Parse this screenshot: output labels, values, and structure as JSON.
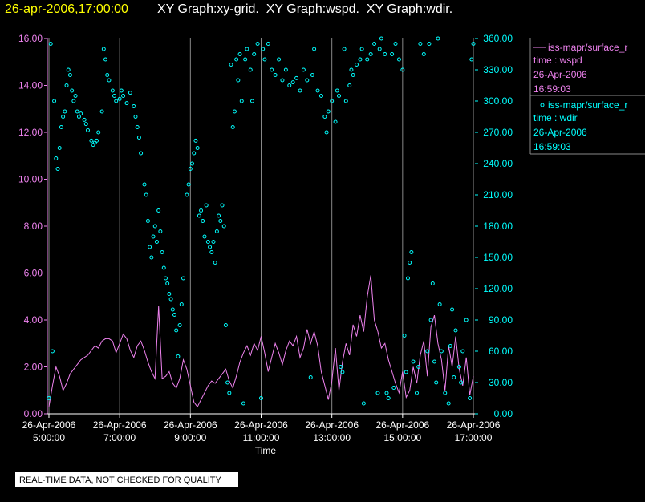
{
  "chart_data": {
    "type": "line",
    "title": "26-apr-2006,17:00:00",
    "subtitle": "XY Graph:xy-grid.  XY Graph:wspd.  XY Graph:wdir.",
    "xlabel": "Time",
    "note": "REAL-TIME DATA, NOT CHECKED FOR QUALITY",
    "xlim": [
      4.955,
      17.045
    ],
    "xticks": [
      {
        "value": 5,
        "label": [
          "26-Apr-2006",
          "5:00:00"
        ]
      },
      {
        "value": 7,
        "label": [
          "26-Apr-2006",
          "7:00:00"
        ]
      },
      {
        "value": 9,
        "label": [
          "26-Apr-2006",
          "9:00:00"
        ]
      },
      {
        "value": 11,
        "label": [
          "26-Apr-2006",
          "11:00:00"
        ]
      },
      {
        "value": 13,
        "label": [
          "26-Apr-2006",
          "13:00:00"
        ]
      },
      {
        "value": 15,
        "label": [
          "26-Apr-2006",
          "15:00:00"
        ]
      },
      {
        "value": 17,
        "label": [
          "26-Apr-2006",
          "17:00:00"
        ]
      }
    ],
    "ylim": [
      0,
      16
    ],
    "yticks": [
      {
        "value": 0,
        "label": "0.00"
      },
      {
        "value": 2,
        "label": "2.00"
      },
      {
        "value": 4,
        "label": "4.00"
      },
      {
        "value": 6,
        "label": "6.00"
      },
      {
        "value": 8,
        "label": "8.00"
      },
      {
        "value": 10,
        "label": "10.00"
      },
      {
        "value": 12,
        "label": "12.00"
      },
      {
        "value": 14,
        "label": "14.00"
      },
      {
        "value": 16,
        "label": "16.00"
      }
    ],
    "y2lim": [
      0,
      360
    ],
    "y2ticks": [
      {
        "value": 0,
        "label": "0.00"
      },
      {
        "value": 30,
        "label": "30.00"
      },
      {
        "value": 60,
        "label": "60.00"
      },
      {
        "value": 90,
        "label": "90.00"
      },
      {
        "value": 120,
        "label": "120.00"
      },
      {
        "value": 150,
        "label": "150.00"
      },
      {
        "value": 180,
        "label": "180.00"
      },
      {
        "value": 210,
        "label": "210.00"
      },
      {
        "value": 240,
        "label": "240.00"
      },
      {
        "value": 270,
        "label": "270.00"
      },
      {
        "value": 300,
        "label": "300.00"
      },
      {
        "value": 330,
        "label": "330.00"
      },
      {
        "value": 360,
        "label": "360.00"
      }
    ],
    "xgrid": true,
    "series": [
      {
        "name": "iss-mapr/surface_r",
        "color": "#ee82ee",
        "type": "line",
        "axis": "y",
        "legend": [
          "time : wspd",
          "26-Apr-2006",
          "16:59:03"
        ],
        "x": [
          5.0,
          5.1,
          5.2,
          5.3,
          5.4,
          5.5,
          5.6,
          5.7,
          5.8,
          5.9,
          6.0,
          6.1,
          6.2,
          6.3,
          6.4,
          6.5,
          6.6,
          6.7,
          6.8,
          6.9,
          7.0,
          7.1,
          7.2,
          7.3,
          7.4,
          7.5,
          7.6,
          7.7,
          7.8,
          7.9,
          8.0,
          8.1,
          8.2,
          8.3,
          8.4,
          8.5,
          8.6,
          8.7,
          8.8,
          8.9,
          9.0,
          9.1,
          9.2,
          9.3,
          9.4,
          9.5,
          9.6,
          9.7,
          9.8,
          9.9,
          10.0,
          10.1,
          10.2,
          10.3,
          10.4,
          10.5,
          10.6,
          10.7,
          10.8,
          10.9,
          11.0,
          11.1,
          11.2,
          11.3,
          11.4,
          11.5,
          11.6,
          11.7,
          11.8,
          11.9,
          12.0,
          12.1,
          12.2,
          12.3,
          12.4,
          12.5,
          12.6,
          12.7,
          12.8,
          12.9,
          13.0,
          13.1,
          13.2,
          13.3,
          13.4,
          13.5,
          13.6,
          13.7,
          13.8,
          13.9,
          14.0,
          14.1,
          14.2,
          14.3,
          14.4,
          14.5,
          14.6,
          14.7,
          14.8,
          14.9,
          15.0,
          15.1,
          15.2,
          15.3,
          15.4,
          15.5,
          15.6,
          15.7,
          15.8,
          15.9,
          16.0,
          16.1,
          16.2,
          16.3,
          16.4,
          16.5,
          16.6,
          16.7,
          16.8,
          16.9,
          17.0
        ],
        "values": [
          0.3,
          1.2,
          2.0,
          1.6,
          1.0,
          1.3,
          1.7,
          1.9,
          2.1,
          2.3,
          2.4,
          2.5,
          2.7,
          2.9,
          2.8,
          3.1,
          3.2,
          3.2,
          3.1,
          2.6,
          3.0,
          3.4,
          3.2,
          2.7,
          2.4,
          2.9,
          3.1,
          2.7,
          2.2,
          1.8,
          1.5,
          4.6,
          1.5,
          1.6,
          1.8,
          1.3,
          1.1,
          1.5,
          2.3,
          1.9,
          1.2,
          0.5,
          0.3,
          0.6,
          0.9,
          1.2,
          1.4,
          1.3,
          1.5,
          1.7,
          1.9,
          1.4,
          1.1,
          1.6,
          2.2,
          2.6,
          2.9,
          2.5,
          3.0,
          2.7,
          3.3,
          2.6,
          1.8,
          2.4,
          3.0,
          2.6,
          2.1,
          2.7,
          3.1,
          2.9,
          3.3,
          2.4,
          2.8,
          3.6,
          3.0,
          3.5,
          2.9,
          1.8,
          1.2,
          0.6,
          1.4,
          2.8,
          1.0,
          2.2,
          3.0,
          2.5,
          3.8,
          3.3,
          4.2,
          3.5,
          5.0,
          5.9,
          4.0,
          3.5,
          2.8,
          3.0,
          2.3,
          1.8,
          1.3,
          0.9,
          1.8,
          0.7,
          1.0,
          2.0,
          1.3,
          2.5,
          3.1,
          1.6,
          3.7,
          4.2,
          3.0,
          2.3,
          1.0,
          2.9,
          2.0,
          3.3,
          1.9,
          1.2,
          2.4,
          0.8,
          1.6
        ]
      },
      {
        "name": "iss-mapr/surface_r",
        "color": "#00ffff",
        "type": "scatter",
        "axis": "y2",
        "legend": [
          "time : wdir",
          "26-Apr-2006",
          "16:59:03"
        ],
        "x": [
          5.0,
          5.05,
          5.1,
          5.15,
          5.2,
          5.25,
          5.3,
          5.35,
          5.4,
          5.45,
          5.5,
          5.55,
          5.6,
          5.65,
          5.7,
          5.75,
          5.8,
          5.85,
          5.9,
          6.0,
          6.05,
          6.1,
          6.2,
          6.25,
          6.3,
          6.35,
          6.4,
          6.5,
          6.55,
          6.6,
          6.65,
          6.7,
          6.8,
          6.85,
          6.9,
          7.0,
          7.05,
          7.1,
          7.2,
          7.3,
          7.4,
          7.45,
          7.5,
          7.55,
          7.6,
          7.7,
          7.75,
          7.8,
          7.85,
          7.9,
          7.95,
          8.0,
          8.05,
          8.1,
          8.15,
          8.2,
          8.25,
          8.3,
          8.35,
          8.4,
          8.45,
          8.5,
          8.55,
          8.6,
          8.65,
          8.7,
          8.75,
          8.8,
          8.9,
          8.95,
          9.0,
          9.05,
          9.1,
          9.15,
          9.2,
          9.25,
          9.3,
          9.35,
          9.4,
          9.45,
          9.5,
          9.55,
          9.6,
          9.65,
          9.7,
          9.75,
          9.8,
          9.85,
          9.9,
          9.95,
          10.0,
          10.05,
          10.1,
          10.15,
          10.2,
          10.25,
          10.3,
          10.35,
          10.4,
          10.45,
          10.5,
          10.55,
          10.6,
          10.7,
          10.75,
          10.8,
          10.9,
          11.0,
          11.05,
          11.1,
          11.2,
          11.3,
          11.4,
          11.5,
          11.6,
          11.7,
          11.8,
          11.9,
          12.0,
          12.1,
          12.2,
          12.3,
          12.4,
          12.45,
          12.5,
          12.6,
          12.7,
          12.8,
          12.85,
          12.9,
          13.0,
          13.1,
          13.15,
          13.2,
          13.25,
          13.3,
          13.35,
          13.4,
          13.5,
          13.55,
          13.6,
          13.7,
          13.8,
          13.85,
          13.9,
          14.0,
          14.1,
          14.2,
          14.3,
          14.35,
          14.4,
          14.5,
          14.55,
          14.6,
          14.7,
          14.75,
          14.8,
          14.9,
          15.0,
          15.05,
          15.1,
          15.15,
          15.2,
          15.25,
          15.3,
          15.4,
          15.45,
          15.5,
          15.6,
          15.7,
          15.75,
          15.8,
          15.85,
          15.9,
          15.95,
          16.0,
          16.05,
          16.1,
          16.2,
          16.3,
          16.35,
          16.4,
          16.45,
          16.5,
          16.6,
          16.65,
          16.7,
          16.8,
          16.9,
          16.95,
          17.0
        ],
        "values": [
          15,
          355,
          60,
          300,
          245,
          235,
          255,
          275,
          285,
          290,
          315,
          330,
          325,
          310,
          300,
          305,
          290,
          285,
          288,
          282,
          278,
          272,
          262,
          258,
          260,
          262,
          270,
          290,
          350,
          340,
          325,
          320,
          310,
          305,
          300,
          302,
          310,
          305,
          298,
          308,
          295,
          285,
          275,
          265,
          250,
          220,
          210,
          185,
          160,
          150,
          170,
          180,
          165,
          195,
          175,
          155,
          140,
          130,
          125,
          115,
          110,
          100,
          95,
          80,
          55,
          85,
          105,
          130,
          210,
          220,
          235,
          240,
          250,
          262,
          255,
          190,
          195,
          185,
          170,
          200,
          165,
          160,
          155,
          165,
          145,
          175,
          190,
          185,
          200,
          180,
          85,
          30,
          20,
          335,
          275,
          290,
          340,
          320,
          345,
          300,
          10,
          340,
          350,
          330,
          300,
          345,
          355,
          15,
          350,
          340,
          355,
          330,
          325,
          340,
          320,
          330,
          315,
          318,
          322,
          310,
          330,
          320,
          35,
          325,
          350,
          310,
          305,
          285,
          270,
          290,
          300,
          280,
          310,
          305,
          45,
          40,
          350,
          300,
          315,
          330,
          325,
          335,
          340,
          350,
          10,
          340,
          345,
          355,
          20,
          350,
          360,
          345,
          20,
          15,
          345,
          25,
          355,
          340,
          330,
          75,
          40,
          130,
          145,
          155,
          50,
          20,
          45,
          355,
          345,
          60,
          355,
          90,
          125,
          50,
          30,
          360,
          105,
          60,
          20,
          10,
          65,
          100,
          35,
          80,
          45,
          30,
          60,
          90,
          15,
          340,
          355
        ]
      }
    ]
  }
}
